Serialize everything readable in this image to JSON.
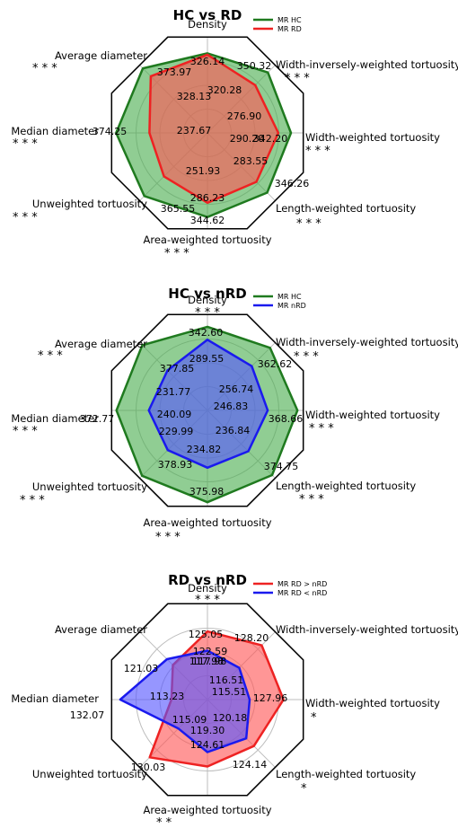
{
  "chart_data": [
    {
      "type": "radar",
      "title": "HC vs RD",
      "axes": [
        "Density",
        "Width-inversely-weighted tortuosity",
        "Width-weighted tortuosity",
        "Length-weighted tortuosity",
        "Area-weighted tortuosity",
        "Unweighted tortuosity",
        "Median diameter",
        "Average diameter"
      ],
      "significance": [
        "",
        "***",
        "***",
        "***",
        "***",
        "***",
        "***",
        "***"
      ],
      "series": [
        {
          "name": "MR HC",
          "color": "#1f7a1f",
          "fill": "#4caf50",
          "values": [
            326.14,
            350.32,
            342.2,
            346.26,
            344.62,
            365.55,
            374.25,
            373.97
          ]
        },
        {
          "name": "MR RD",
          "color": "#ee2222",
          "fill": "#ff5555",
          "values": [
            320.28,
            276.9,
            290.2,
            283.55,
            286.23,
            251.93,
            237.67,
            328.13
          ]
        }
      ],
      "legend_position": "top-right"
    },
    {
      "type": "radar",
      "title": "HC vs nRD",
      "axes": [
        "Density",
        "Width-inversely-weighted tortuosity",
        "Width-weighted tortuosity",
        "Length-weighted tortuosity",
        "Area-weighted tortuosity",
        "Unweighted tortuosity",
        "Median diameter",
        "Average diameter"
      ],
      "significance": [
        "***",
        "***",
        "***",
        "***",
        "***",
        "***",
        "***",
        "***"
      ],
      "series": [
        {
          "name": "MR HC",
          "color": "#1f7a1f",
          "fill": "#4caf50",
          "values": [
            342.6,
            362.62,
            368.66,
            374.75,
            375.98,
            378.93,
            372.77,
            377.85
          ]
        },
        {
          "name": "MR nRD",
          "color": "#1a1aee",
          "fill": "#5555ff",
          "values": [
            289.55,
            256.74,
            246.83,
            236.84,
            234.82,
            229.99,
            240.09,
            231.77
          ]
        }
      ],
      "legend_position": "top-right"
    },
    {
      "type": "radar",
      "title": "RD vs nRD",
      "axes": [
        "Density",
        "Width-inversely-weighted tortuosity",
        "Width-weighted tortuosity",
        "Length-weighted tortuosity",
        "Area-weighted tortuosity",
        "Unweighted tortuosity",
        "Median diameter",
        "Average diameter"
      ],
      "significance": [
        "***",
        "",
        "*",
        "*",
        "**",
        "",
        "",
        ""
      ],
      "series": [
        {
          "name": "MR RD > nRD",
          "color": "#ee2222",
          "fill": "#ff5555",
          "values": [
            125.05,
            128.2,
            127.96,
            124.14,
            124.61,
            130.03,
            113.23,
            117.98
          ]
        },
        {
          "name": "MR RD < nRD",
          "color": "#1a1aee",
          "fill": "#5555ff",
          "values": [
            117.98,
            116.51,
            115.51,
            120.18,
            119.3,
            115.09,
            132.07,
            121.03
          ]
        }
      ],
      "extra_labels": [
        "122.59"
      ],
      "legend_position": "top-right"
    }
  ]
}
